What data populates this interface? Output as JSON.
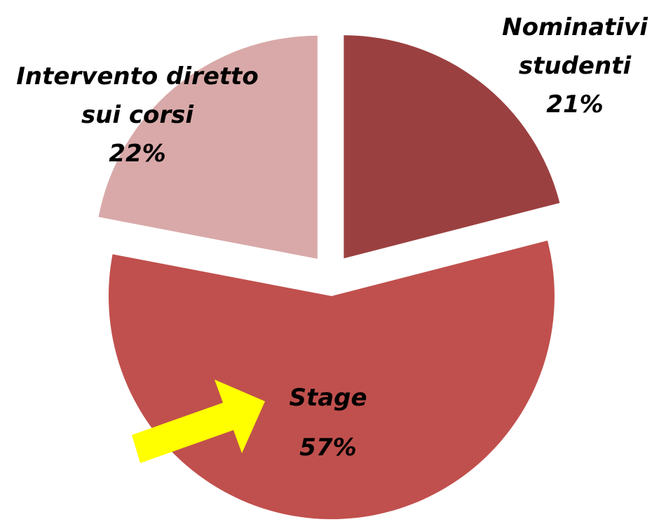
{
  "chart_data": {
    "type": "pie",
    "categories": [
      "Nominativi studenti",
      "Stage",
      "Intervento diretto sui corsi"
    ],
    "values": [
      21,
      57,
      22
    ],
    "value_labels": [
      "21%",
      "57%",
      "22%"
    ],
    "colors": [
      "#9b4040",
      "#c0504d",
      "#d9a9a9"
    ]
  }
}
